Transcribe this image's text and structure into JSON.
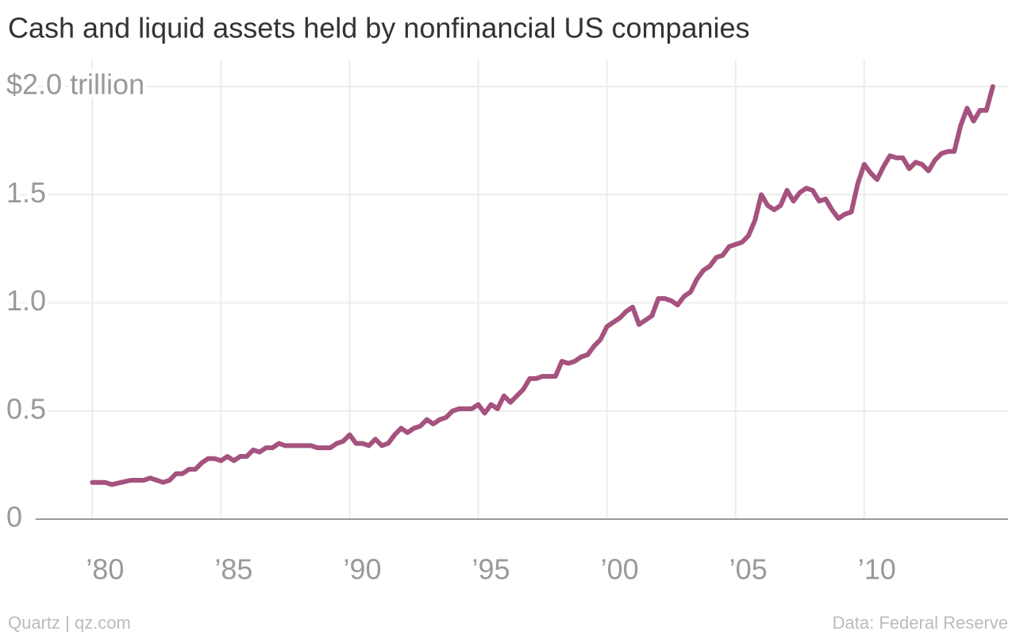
{
  "chart_data": {
    "type": "line",
    "title": "Cash and liquid assets held by nonfinancial US companies",
    "source": "Data: Federal Reserve",
    "credit": "Quartz | qz.com",
    "x": [
      1980,
      1980.5,
      1980.75,
      1981.5,
      1982,
      1982.25,
      1982.75,
      1983,
      1983.25,
      1983.5,
      1983.75,
      1984,
      1984.25,
      1984.5,
      1984.75,
      1985,
      1985.25,
      1985.5,
      1985.75,
      1986,
      1986.25,
      1986.5,
      1986.75,
      1987,
      1987.25,
      1987.5,
      1988,
      1988.5,
      1988.75,
      1989.25,
      1989.5,
      1989.75,
      1990,
      1990.25,
      1990.5,
      1990.75,
      1991,
      1991.25,
      1991.5,
      1991.75,
      1992,
      1992.25,
      1992.5,
      1992.75,
      1993,
      1993.25,
      1993.5,
      1993.75,
      1994,
      1994.25,
      1994.5,
      1994.75,
      1995,
      1995.25,
      1995.5,
      1995.75,
      1996,
      1996.25,
      1996.5,
      1996.75,
      1997,
      1997.25,
      1997.5,
      1998,
      1998.25,
      1998.5,
      1998.75,
      1999,
      1999.25,
      1999.5,
      1999.75,
      2000,
      2000.25,
      2000.5,
      2000.75,
      2001,
      2001.25,
      2001.5,
      2001.75,
      2002,
      2002.25,
      2002.5,
      2002.75,
      2003,
      2003.25,
      2003.5,
      2003.75,
      2004,
      2004.25,
      2004.5,
      2004.75,
      2005,
      2005.25,
      2005.5,
      2005.75,
      2006,
      2006.25,
      2006.5,
      2006.75,
      2007,
      2007.25,
      2007.5,
      2007.75,
      2008,
      2008.25,
      2008.5,
      2008.75,
      2009,
      2009.25,
      2009.5,
      2009.75,
      2010,
      2010.25,
      2010.5,
      2010.75,
      2011,
      2011.25,
      2011.5,
      2011.75,
      2012,
      2012.25,
      2012.5,
      2012.75,
      2013,
      2013.25,
      2013.5,
      2013.75,
      2014,
      2014.25,
      2014.5,
      2014.75,
      2015
    ],
    "series": [
      {
        "name": "Cash and liquid assets",
        "color": "#a5527f",
        "values": [
          0.17,
          0.17,
          0.16,
          0.18,
          0.18,
          0.19,
          0.17,
          0.18,
          0.21,
          0.21,
          0.23,
          0.23,
          0.26,
          0.28,
          0.28,
          0.27,
          0.29,
          0.27,
          0.29,
          0.29,
          0.32,
          0.31,
          0.33,
          0.33,
          0.35,
          0.34,
          0.34,
          0.34,
          0.33,
          0.33,
          0.35,
          0.36,
          0.39,
          0.35,
          0.35,
          0.34,
          0.37,
          0.34,
          0.35,
          0.39,
          0.42,
          0.4,
          0.42,
          0.43,
          0.46,
          0.44,
          0.46,
          0.47,
          0.5,
          0.51,
          0.51,
          0.51,
          0.53,
          0.49,
          0.53,
          0.51,
          0.57,
          0.54,
          0.57,
          0.6,
          0.65,
          0.65,
          0.66,
          0.66,
          0.73,
          0.72,
          0.73,
          0.75,
          0.76,
          0.8,
          0.83,
          0.89,
          0.91,
          0.93,
          0.96,
          0.98,
          0.9,
          0.92,
          0.94,
          1.02,
          1.02,
          1.01,
          0.99,
          1.03,
          1.05,
          1.11,
          1.15,
          1.17,
          1.21,
          1.22,
          1.26,
          1.27,
          1.28,
          1.31,
          1.38,
          1.5,
          1.45,
          1.43,
          1.45,
          1.52,
          1.47,
          1.51,
          1.53,
          1.52,
          1.47,
          1.48,
          1.43,
          1.39,
          1.41,
          1.42,
          1.55,
          1.64,
          1.6,
          1.57,
          1.63,
          1.68,
          1.67,
          1.67,
          1.62,
          1.65,
          1.64,
          1.61,
          1.66,
          1.69,
          1.7,
          1.7,
          1.82,
          1.9,
          1.84,
          1.89,
          1.89,
          2.0
        ]
      }
    ],
    "xlim": [
      1977.8,
      2015.9
    ],
    "xticks": [
      {
        "value": 1980,
        "label": "’80"
      },
      {
        "value": 1985,
        "label": "’85"
      },
      {
        "value": 1990,
        "label": "’90"
      },
      {
        "value": 1995,
        "label": "’95"
      },
      {
        "value": 2000,
        "label": "’00"
      },
      {
        "value": 2005,
        "label": "’05"
      },
      {
        "value": 2010,
        "label": "’10"
      }
    ],
    "ylim": [
      0,
      2.0
    ],
    "yticks": [
      0,
      0.5,
      {
        "value": 1.0,
        "label": "1.0"
      },
      1.5,
      {
        "value": 2.0,
        "label": "$2.0 trillion"
      }
    ],
    "grid": true
  }
}
